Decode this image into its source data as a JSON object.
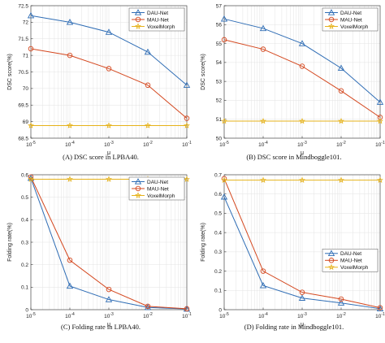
{
  "colors": {
    "dau": "#2F6DB5",
    "mau": "#D4471E",
    "voxelmorph": "#E6B21A"
  },
  "chart_data": [
    {
      "type": "line",
      "caption": "(A) DSC score in LPBA40.",
      "xlabel": "μ",
      "ylabel": "DSC score(%)",
      "x": [
        "10^-5",
        "10^-4",
        "10^-3",
        "10^-2",
        "10^-1"
      ],
      "xscale": "log",
      "ylim": [
        68.5,
        72.5
      ],
      "yticks": [
        "68.5",
        "69",
        "69.5",
        "70",
        "70.5",
        "71",
        "71.5",
        "72",
        "72.5"
      ],
      "legend_position": "top-right",
      "grid": true,
      "series": [
        {
          "name": "DAU-Net",
          "marker": "triangle",
          "color": "#2F6DB5",
          "values": [
            72.2,
            72.0,
            71.7,
            71.1,
            70.1
          ]
        },
        {
          "name": "MAU-Net",
          "marker": "circle",
          "color": "#D4471E",
          "values": [
            71.2,
            71.0,
            70.6,
            70.1,
            69.1
          ]
        },
        {
          "name": "VoxelMorph",
          "marker": "star",
          "color": "#E6B21A",
          "values": [
            68.88,
            68.88,
            68.88,
            68.88,
            68.88
          ]
        }
      ]
    },
    {
      "type": "line",
      "caption": "(B) DSC score in Mindboggle101.",
      "xlabel": "μ",
      "ylabel": "DSC score(%)",
      "x": [
        "10^-5",
        "10^-4",
        "10^-3",
        "10^-2",
        "10^-1"
      ],
      "xscale": "log",
      "ylim": [
        50,
        57
      ],
      "yticks": [
        "50",
        "51",
        "52",
        "53",
        "54",
        "55",
        "56",
        "57"
      ],
      "legend_position": "top-right",
      "grid": true,
      "series": [
        {
          "name": "DAU-Net",
          "marker": "triangle",
          "color": "#2F6DB5",
          "values": [
            56.3,
            55.8,
            55.0,
            53.7,
            51.9
          ]
        },
        {
          "name": "MAU-Net",
          "marker": "circle",
          "color": "#D4471E",
          "values": [
            55.2,
            54.7,
            53.8,
            52.5,
            51.1
          ]
        },
        {
          "name": "VoxelMorph",
          "marker": "star",
          "color": "#E6B21A",
          "values": [
            50.9,
            50.9,
            50.9,
            50.9,
            50.9
          ]
        }
      ]
    },
    {
      "type": "line",
      "caption": "(C) Folding rate in LPBA40.",
      "xlabel": "μ",
      "ylabel": "Folding rate(%)",
      "x": [
        "10^-5",
        "10^-4",
        "10^-3",
        "10^-2",
        "10^-1"
      ],
      "xscale": "log",
      "ylim": [
        0,
        0.6
      ],
      "yticks": [
        "0",
        "0.1",
        "0.2",
        "0.3",
        "0.4",
        "0.5",
        "0.6"
      ],
      "legend_position": "top-right",
      "grid": true,
      "series": [
        {
          "name": "DAU-Net",
          "marker": "triangle",
          "color": "#2F6DB5",
          "values": [
            0.585,
            0.105,
            0.045,
            0.01,
            0.003
          ]
        },
        {
          "name": "MAU-Net",
          "marker": "circle",
          "color": "#D4471E",
          "values": [
            0.59,
            0.22,
            0.09,
            0.015,
            0.004
          ]
        },
        {
          "name": "VoxelMorph",
          "marker": "star",
          "color": "#E6B21A",
          "values": [
            0.58,
            0.58,
            0.58,
            0.58,
            0.58
          ]
        }
      ]
    },
    {
      "type": "line",
      "caption": "(D) Folding rate in Mindboggle101.",
      "xlabel": "μ",
      "ylabel": "Folding rate(%)",
      "x": [
        "10^-5",
        "10^-4",
        "10^-3",
        "10^-2",
        "10^-1"
      ],
      "xscale": "log",
      "ylim": [
        0,
        0.7
      ],
      "yticks": [
        "0",
        "0.1",
        "0.2",
        "0.3",
        "0.4",
        "0.5",
        "0.6",
        "0.7"
      ],
      "legend_position": "center-right",
      "grid": true,
      "series": [
        {
          "name": "DAU-Net",
          "marker": "triangle",
          "color": "#2F6DB5",
          "values": [
            0.585,
            0.125,
            0.06,
            0.035,
            0.005
          ]
        },
        {
          "name": "MAU-Net",
          "marker": "circle",
          "color": "#D4471E",
          "values": [
            0.68,
            0.2,
            0.09,
            0.055,
            0.01
          ]
        },
        {
          "name": "VoxelMorph",
          "marker": "star",
          "color": "#E6B21A",
          "values": [
            0.672,
            0.672,
            0.672,
            0.672,
            0.672
          ]
        }
      ]
    }
  ]
}
